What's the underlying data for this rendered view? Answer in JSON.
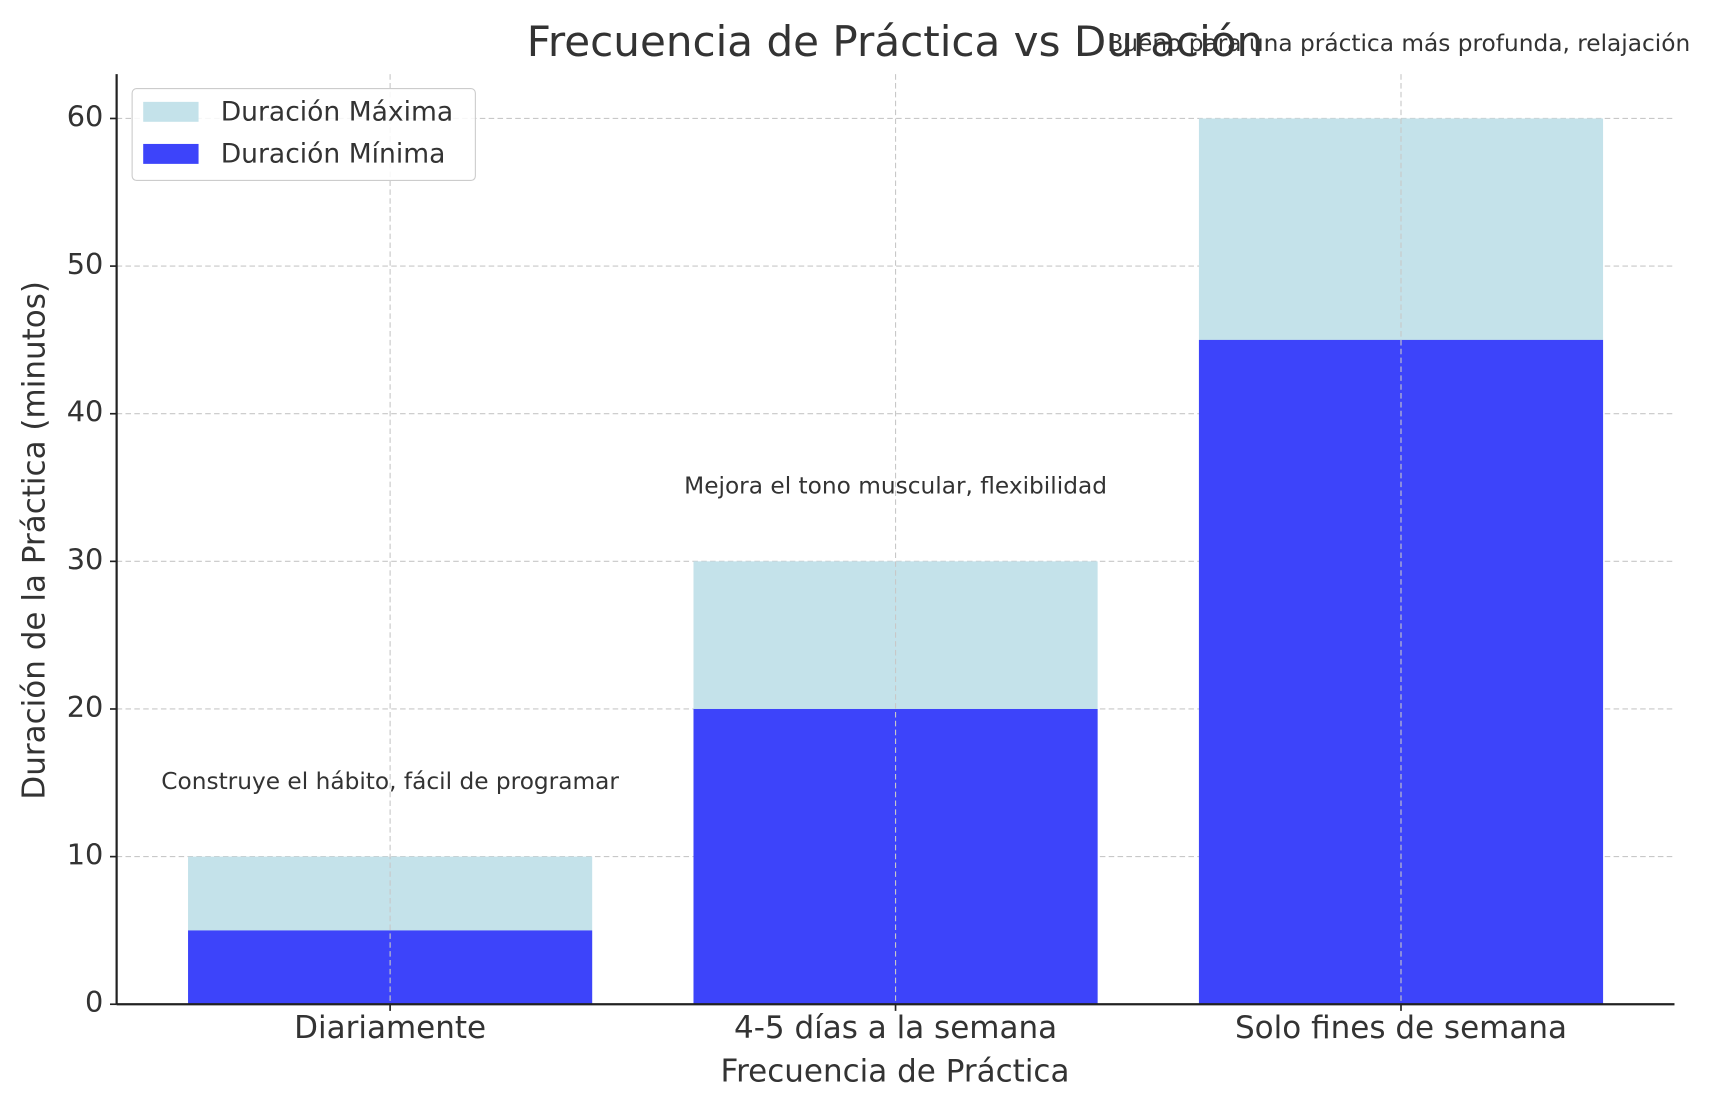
{
  "chart_data": {
    "type": "bar",
    "title": "Frecuencia de Práctica vs Duración",
    "x_label": "Frecuencia de Práctica",
    "y_label": "Duración de la Práctica (minutos)",
    "categories": [
      "Diariamente",
      "4-5 días a la semana",
      "Solo fines de semana"
    ],
    "series": [
      {
        "name": "Duración Máxima",
        "color": "#c4e2ea",
        "values": [
          10,
          30,
          60
        ]
      },
      {
        "name": "Duración Mínima",
        "color": "#3d44fa",
        "values": [
          5,
          20,
          45
        ]
      }
    ],
    "annotations": [
      "Construye el hábito, fácil de programar",
      "Mejora el tono muscular, flexibilidad",
      "Bueno para una práctica más profunda, relajación"
    ],
    "ylim": [
      0,
      63
    ],
    "yticks": [
      0,
      10,
      20,
      30,
      40,
      50,
      60
    ],
    "grid": true,
    "legend": "upper left"
  }
}
